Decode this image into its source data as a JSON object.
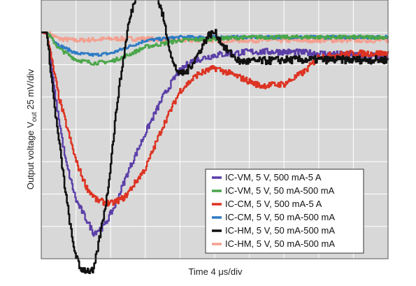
{
  "chart_data": {
    "type": "line",
    "xlabel": "Time  4 μs/div",
    "ylabel": {
      "main": "Output voltage V",
      "sub": "out",
      "rest": " 25 mV/div"
    },
    "x_divisions": 10,
    "y_divisions": 8,
    "x_range": [
      0,
      10
    ],
    "y_range": [
      -6,
      2
    ],
    "grid": true,
    "legend_position": "bottom-right",
    "series": [
      {
        "name": "IC-VM, 5 V, 500 mA-5 A",
        "color": "#5b3fa8",
        "noise": 0.1,
        "points": [
          [
            0,
            1.0
          ],
          [
            0.15,
            0.95
          ],
          [
            0.4,
            -1.0
          ],
          [
            0.7,
            -3.0
          ],
          [
            1.0,
            -4.2
          ],
          [
            1.3,
            -4.8
          ],
          [
            1.5,
            -5.2
          ],
          [
            1.8,
            -5.0
          ],
          [
            2.1,
            -4.4
          ],
          [
            2.5,
            -3.3
          ],
          [
            3.0,
            -2.1
          ],
          [
            3.5,
            -1.0
          ],
          [
            3.9,
            -0.3
          ],
          [
            4.3,
            0.1
          ],
          [
            5.0,
            0.3
          ],
          [
            6.0,
            0.4
          ],
          [
            7.0,
            0.4
          ],
          [
            8.0,
            0.35
          ],
          [
            9.0,
            0.3
          ],
          [
            10.0,
            0.25
          ]
        ]
      },
      {
        "name": "IC-VM, 5 V, 50 mA-500 mA",
        "color": "#4aa64a",
        "noise": 0.06,
        "points": [
          [
            0,
            1.0
          ],
          [
            0.15,
            1.0
          ],
          [
            0.5,
            0.5
          ],
          [
            1.0,
            0.15
          ],
          [
            1.5,
            0.05
          ],
          [
            2.0,
            0.1
          ],
          [
            2.5,
            0.3
          ],
          [
            3.0,
            0.55
          ],
          [
            4.0,
            0.75
          ],
          [
            5.0,
            0.8
          ],
          [
            6.0,
            0.85
          ],
          [
            7.0,
            0.85
          ],
          [
            8.0,
            0.85
          ],
          [
            9.0,
            0.85
          ],
          [
            10.0,
            0.85
          ]
        ]
      },
      {
        "name": "IC-CM, 5 V, 500 mA-5 A",
        "color": "#dd3322",
        "noise": 0.1,
        "points": [
          [
            0,
            1.0
          ],
          [
            0.15,
            0.95
          ],
          [
            0.5,
            -1.0
          ],
          [
            1.0,
            -3.0
          ],
          [
            1.3,
            -3.8
          ],
          [
            1.6,
            -4.2
          ],
          [
            2.0,
            -4.3
          ],
          [
            2.4,
            -4.1
          ],
          [
            3.0,
            -3.2
          ],
          [
            3.5,
            -1.9
          ],
          [
            4.0,
            -0.8
          ],
          [
            4.5,
            -0.3
          ],
          [
            5.0,
            -0.1
          ],
          [
            5.5,
            -0.3
          ],
          [
            6.3,
            -0.65
          ],
          [
            7.0,
            -0.6
          ],
          [
            7.6,
            -0.2
          ],
          [
            8.0,
            0.25
          ],
          [
            9.0,
            0.35
          ],
          [
            10.0,
            0.35
          ]
        ]
      },
      {
        "name": "IC-CM, 5 V, 50 mA-500 mA",
        "color": "#2e7bc4",
        "noise": 0.05,
        "points": [
          [
            0,
            1.0
          ],
          [
            0.15,
            1.0
          ],
          [
            0.5,
            0.6
          ],
          [
            1.0,
            0.35
          ],
          [
            1.5,
            0.3
          ],
          [
            2.0,
            0.35
          ],
          [
            2.5,
            0.55
          ],
          [
            3.0,
            0.75
          ],
          [
            4.0,
            0.85
          ],
          [
            5.0,
            0.85
          ],
          [
            6.0,
            0.85
          ],
          [
            7.0,
            0.85
          ],
          [
            8.0,
            0.85
          ],
          [
            9.0,
            0.85
          ],
          [
            10.0,
            0.85
          ]
        ]
      },
      {
        "name": "IC-HM, 5 V, 50 mA-500 mA",
        "color": "#111111",
        "noise": 0.12,
        "points": [
          [
            0,
            1.0
          ],
          [
            0.15,
            1.0
          ],
          [
            0.4,
            -1.5
          ],
          [
            0.7,
            -4.0
          ],
          [
            0.9,
            -5.5
          ],
          [
            1.1,
            -6.3
          ],
          [
            1.5,
            -6.4
          ],
          [
            1.9,
            -4.0
          ],
          [
            2.2,
            -1.0
          ],
          [
            2.5,
            1.2
          ],
          [
            2.8,
            2.5
          ],
          [
            3.2,
            2.6
          ],
          [
            3.5,
            1.5
          ],
          [
            3.8,
            0.0
          ],
          [
            4.0,
            -0.3
          ],
          [
            4.2,
            -0.2
          ],
          [
            4.5,
            0.3
          ],
          [
            4.8,
            0.9
          ],
          [
            5.0,
            1.0
          ],
          [
            5.3,
            0.5
          ],
          [
            5.7,
            0.1
          ],
          [
            6.0,
            0.1
          ],
          [
            7.0,
            0.15
          ],
          [
            8.0,
            0.15
          ],
          [
            9.0,
            0.15
          ],
          [
            10.0,
            0.15
          ]
        ]
      },
      {
        "name": "IC-HM, 5 V, 50 mA-500 mA",
        "color": "#f4a090",
        "noise": 0.07,
        "points": [
          [
            0,
            1.0
          ],
          [
            0.15,
            1.0
          ],
          [
            0.5,
            0.8
          ],
          [
            1.0,
            0.75
          ],
          [
            2.0,
            0.8
          ],
          [
            3.0,
            0.8
          ],
          [
            4.0,
            0.75
          ],
          [
            5.0,
            0.75
          ],
          [
            6.0,
            0.75
          ],
          [
            7.0,
            0.75
          ],
          [
            8.0,
            0.75
          ],
          [
            9.0,
            0.75
          ],
          [
            10.0,
            0.75
          ]
        ]
      }
    ]
  }
}
